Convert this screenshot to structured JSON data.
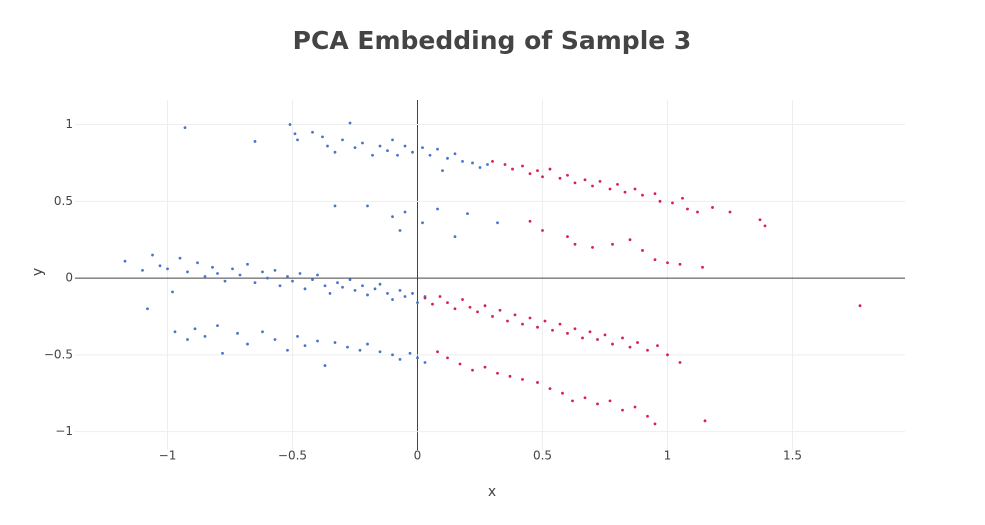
{
  "chart_data": {
    "type": "scatter",
    "title": "PCA Embedding of Sample 3",
    "x_label": "x",
    "y_label": "y",
    "xlim": [
      -1.37,
      1.95
    ],
    "ylim": [
      -1.12,
      1.16
    ],
    "xticks": [
      {
        "value": -1,
        "label": "−1"
      },
      {
        "value": -0.5,
        "label": "−0.5"
      },
      0,
      0.5,
      1,
      1.5
    ],
    "yticks": [
      {
        "value": -1,
        "label": "−1"
      },
      {
        "value": -0.5,
        "label": "−0.5"
      },
      0,
      0.5,
      1
    ],
    "grid": true,
    "zeroline": true,
    "series": [
      {
        "color": "#4a74c9",
        "x": [
          -0.93,
          -0.65,
          -0.51,
          -0.49,
          -0.48,
          -0.42,
          -0.38,
          -0.36,
          -0.33,
          -0.3,
          -0.27,
          -0.25,
          -0.22,
          -0.18,
          -0.15,
          -0.12,
          -0.08,
          -0.05,
          -0.02,
          0.02,
          0.05,
          0.08,
          0.12,
          0.15,
          0.18,
          0.22,
          0.25,
          0.28,
          0.1,
          -0.1,
          -0.33,
          -0.2,
          -0.1,
          -0.05,
          -0.07,
          0.02,
          0.08,
          0.15,
          0.2,
          0.32,
          -1.17,
          -1.1,
          -1.08,
          -1.06,
          -1.03,
          -1.0,
          -0.98,
          -0.95,
          -0.92,
          -0.88,
          -0.85,
          -0.82,
          -0.8,
          -0.77,
          -0.74,
          -0.71,
          -0.68,
          -0.65,
          -0.62,
          -0.6,
          -0.57,
          -0.55,
          -0.52,
          -0.5,
          -0.47,
          -0.45,
          -0.42,
          -0.4,
          -0.37,
          -0.35,
          -0.32,
          -0.3,
          -0.27,
          -0.25,
          -0.22,
          -0.2,
          -0.17,
          -0.15,
          -0.12,
          -0.1,
          -0.07,
          -0.05,
          -0.02,
          0.0,
          0.03,
          -0.97,
          -0.92,
          -0.89,
          -0.85,
          -0.8,
          -0.78,
          -0.72,
          -0.68,
          -0.62,
          -0.57,
          -0.52,
          -0.48,
          -0.45,
          -0.4,
          -0.37,
          -0.33,
          -0.28,
          -0.23,
          -0.2,
          -0.15,
          -0.1,
          -0.07,
          -0.03,
          0.0,
          0.03
        ],
        "y": [
          0.98,
          0.89,
          1.0,
          0.94,
          0.9,
          0.95,
          0.92,
          0.86,
          0.82,
          0.9,
          1.01,
          0.85,
          0.88,
          0.8,
          0.86,
          0.83,
          0.8,
          0.86,
          0.82,
          0.85,
          0.8,
          0.84,
          0.78,
          0.81,
          0.76,
          0.75,
          0.72,
          0.74,
          0.7,
          0.9,
          0.47,
          0.47,
          0.4,
          0.43,
          0.31,
          0.36,
          0.45,
          0.27,
          0.42,
          0.36,
          0.11,
          0.05,
          -0.2,
          0.15,
          0.08,
          0.06,
          -0.09,
          0.13,
          0.04,
          0.1,
          0.01,
          0.07,
          0.03,
          -0.02,
          0.06,
          0.02,
          0.09,
          -0.03,
          0.04,
          0.0,
          0.05,
          -0.05,
          0.01,
          -0.02,
          0.03,
          -0.07,
          -0.01,
          0.02,
          -0.05,
          -0.1,
          -0.03,
          -0.06,
          -0.01,
          -0.08,
          -0.05,
          -0.11,
          -0.07,
          -0.04,
          -0.1,
          -0.14,
          -0.08,
          -0.12,
          -0.1,
          -0.16,
          -0.12,
          -0.35,
          -0.4,
          -0.33,
          -0.38,
          -0.31,
          -0.49,
          -0.36,
          -0.43,
          -0.35,
          -0.4,
          -0.47,
          -0.38,
          -0.44,
          -0.41,
          -0.57,
          -0.42,
          -0.45,
          -0.47,
          -0.43,
          -0.48,
          -0.5,
          -0.53,
          -0.49,
          -0.52,
          -0.55
        ]
      },
      {
        "color": "#d6214e",
        "x": [
          0.3,
          0.35,
          0.38,
          0.42,
          0.45,
          0.48,
          0.5,
          0.53,
          0.57,
          0.6,
          0.63,
          0.67,
          0.7,
          0.73,
          0.77,
          0.8,
          0.83,
          0.87,
          0.9,
          0.95,
          0.97,
          1.02,
          1.08,
          1.12,
          1.18,
          1.25,
          1.37,
          1.39,
          1.06,
          0.45,
          0.5,
          0.6,
          0.63,
          0.7,
          0.78,
          0.85,
          0.9,
          0.95,
          1.0,
          1.05,
          1.14,
          0.03,
          0.06,
          0.09,
          0.12,
          0.15,
          0.18,
          0.21,
          0.24,
          0.27,
          0.3,
          0.33,
          0.36,
          0.39,
          0.42,
          0.45,
          0.48,
          0.51,
          0.54,
          0.57,
          0.6,
          0.63,
          0.66,
          0.69,
          0.72,
          0.75,
          0.78,
          0.82,
          0.85,
          0.88,
          0.92,
          0.96,
          1.0,
          1.05,
          1.77,
          0.08,
          0.12,
          0.17,
          0.22,
          0.27,
          0.32,
          0.37,
          0.42,
          0.48,
          0.53,
          0.58,
          0.62,
          0.67,
          0.72,
          0.77,
          0.82,
          0.87,
          0.92,
          0.95,
          1.15
        ],
        "y": [
          0.76,
          0.74,
          0.71,
          0.73,
          0.68,
          0.7,
          0.66,
          0.71,
          0.65,
          0.67,
          0.62,
          0.64,
          0.6,
          0.63,
          0.58,
          0.61,
          0.56,
          0.58,
          0.54,
          0.55,
          0.5,
          0.49,
          0.45,
          0.43,
          0.46,
          0.43,
          0.38,
          0.34,
          0.52,
          0.37,
          0.31,
          0.27,
          0.22,
          0.2,
          0.22,
          0.25,
          0.18,
          0.12,
          0.1,
          0.09,
          0.07,
          -0.13,
          -0.17,
          -0.12,
          -0.16,
          -0.2,
          -0.14,
          -0.19,
          -0.22,
          -0.18,
          -0.25,
          -0.21,
          -0.28,
          -0.24,
          -0.3,
          -0.26,
          -0.32,
          -0.28,
          -0.34,
          -0.3,
          -0.36,
          -0.33,
          -0.39,
          -0.35,
          -0.4,
          -0.37,
          -0.43,
          -0.39,
          -0.45,
          -0.42,
          -0.47,
          -0.44,
          -0.5,
          -0.55,
          -0.18,
          -0.48,
          -0.52,
          -0.56,
          -0.6,
          -0.58,
          -0.62,
          -0.64,
          -0.66,
          -0.68,
          -0.72,
          -0.75,
          -0.8,
          -0.78,
          -0.82,
          -0.8,
          -0.86,
          -0.84,
          -0.9,
          -0.95,
          -0.93
        ]
      }
    ]
  }
}
